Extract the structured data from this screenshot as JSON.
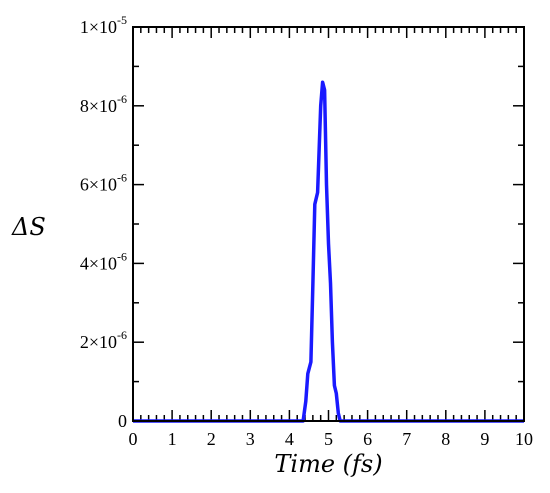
{
  "chart_data": {
    "type": "line",
    "title": "",
    "xlabel": "Time (fs)",
    "ylabel": "ΔS",
    "xlim": [
      0,
      10
    ],
    "ylim": [
      0,
      1e-05
    ],
    "x_ticks": [
      0,
      1,
      2,
      3,
      4,
      5,
      6,
      7,
      8,
      9,
      10
    ],
    "y_ticks": [
      0,
      2e-06,
      4e-06,
      6e-06,
      8e-06,
      1e-05
    ],
    "x_tick_labels": [
      "0",
      "1",
      "2",
      "3",
      "4",
      "5",
      "6",
      "7",
      "8",
      "9",
      "10"
    ],
    "y_tick_labels": [
      {
        "mantissa": "0",
        "exponent": ""
      },
      {
        "mantissa": "2×10",
        "exponent": "-6"
      },
      {
        "mantissa": "4×10",
        "exponent": "-6"
      },
      {
        "mantissa": "6×10",
        "exponent": "-6"
      },
      {
        "mantissa": "8×10",
        "exponent": "-6"
      },
      {
        "mantissa": "1×10",
        "exponent": "-5"
      }
    ],
    "grid": false,
    "legend": "none",
    "series": [
      {
        "color": "#1a1aff",
        "x": [
          0,
          4.35,
          4.42,
          4.47,
          4.55,
          4.6,
          4.65,
          4.72,
          4.8,
          4.85,
          4.9,
          4.95,
          5.0,
          5.05,
          5.1,
          5.15,
          5.2,
          5.25,
          5.3,
          5.4,
          10
        ],
        "y": [
          0,
          0,
          5e-07,
          1.2e-06,
          1.5e-06,
          3.5e-06,
          5.5e-06,
          5.8e-06,
          8e-06,
          8.6e-06,
          8.4e-06,
          6e-06,
          4.5e-06,
          3.5e-06,
          2e-06,
          9e-07,
          7e-07,
          2e-07,
          0,
          0,
          0
        ]
      }
    ]
  }
}
